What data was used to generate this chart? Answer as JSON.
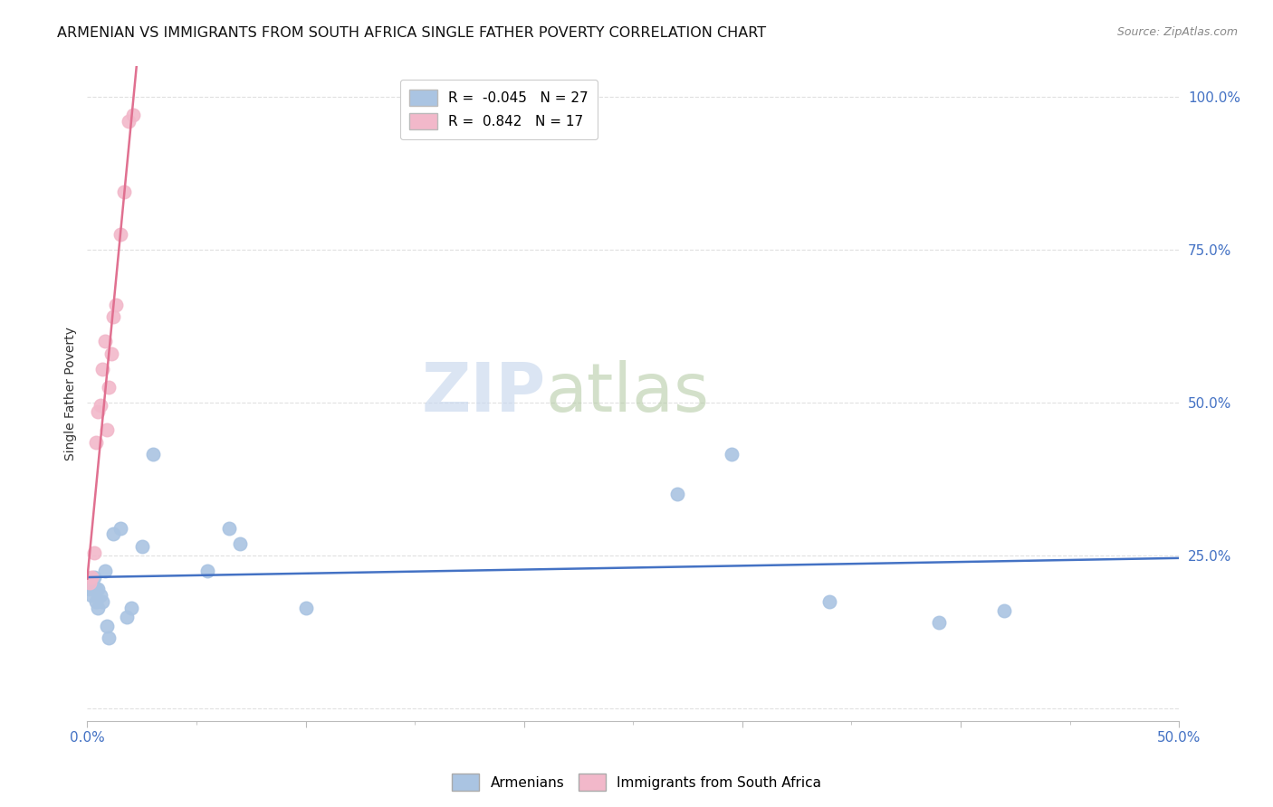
{
  "title": "ARMENIAN VS IMMIGRANTS FROM SOUTH AFRICA SINGLE FATHER POVERTY CORRELATION CHART",
  "source": "Source: ZipAtlas.com",
  "ylabel": "Single Father Poverty",
  "xlim": [
    0.0,
    0.5
  ],
  "ylim": [
    -0.02,
    1.05
  ],
  "watermark_zip": "ZIP",
  "watermark_atlas": "atlas",
  "armenian_x": [
    0.001,
    0.002,
    0.003,
    0.004,
    0.004,
    0.005,
    0.005,
    0.006,
    0.007,
    0.008,
    0.009,
    0.01,
    0.012,
    0.015,
    0.018,
    0.02,
    0.025,
    0.03,
    0.055,
    0.065,
    0.07,
    0.1,
    0.27,
    0.295,
    0.34,
    0.39,
    0.42
  ],
  "armenian_y": [
    0.195,
    0.185,
    0.215,
    0.175,
    0.195,
    0.165,
    0.195,
    0.185,
    0.175,
    0.225,
    0.135,
    0.115,
    0.285,
    0.295,
    0.15,
    0.165,
    0.265,
    0.415,
    0.225,
    0.295,
    0.27,
    0.165,
    0.35,
    0.415,
    0.175,
    0.14,
    0.16
  ],
  "sa_x": [
    0.001,
    0.002,
    0.003,
    0.004,
    0.005,
    0.006,
    0.007,
    0.008,
    0.009,
    0.01,
    0.011,
    0.012,
    0.013,
    0.015,
    0.017,
    0.019,
    0.021
  ],
  "sa_y": [
    0.205,
    0.215,
    0.255,
    0.435,
    0.485,
    0.495,
    0.555,
    0.6,
    0.455,
    0.525,
    0.58,
    0.64,
    0.66,
    0.775,
    0.845,
    0.96,
    0.97
  ],
  "armenian_color": "#aac4e2",
  "sa_color": "#f2b8ca",
  "armenian_line_color": "#4472c4",
  "sa_line_color": "#e07090",
  "r_armenian": -0.045,
  "n_armenian": 27,
  "r_sa": 0.842,
  "n_sa": 17,
  "xtick_positions": [
    0.0,
    0.1,
    0.2,
    0.3,
    0.4,
    0.5
  ],
  "xtick_labels_show": [
    "0.0%",
    "",
    "",
    "",
    "",
    "50.0%"
  ],
  "ytick_positions": [
    0.0,
    0.25,
    0.5,
    0.75,
    1.0
  ],
  "ytick_labels": [
    "",
    "25.0%",
    "50.0%",
    "75.0%",
    "100.0%"
  ],
  "minor_xtick_positions": [
    0.05,
    0.1,
    0.15,
    0.2,
    0.25,
    0.3,
    0.35,
    0.4,
    0.45
  ],
  "grid_color": "#e0e0e0",
  "background_color": "#ffffff",
  "title_fontsize": 11.5,
  "axis_label_fontsize": 10,
  "tick_fontsize": 11,
  "marker_size": 110,
  "legend_fontsize": 11
}
